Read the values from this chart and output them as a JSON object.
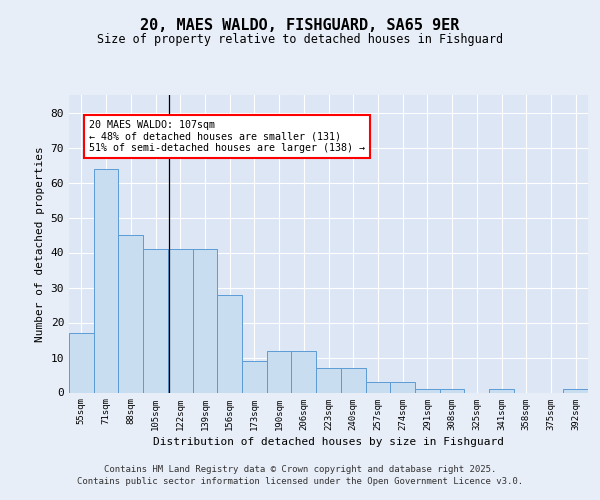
{
  "title": "20, MAES WALDO, FISHGUARD, SA65 9ER",
  "subtitle": "Size of property relative to detached houses in Fishguard",
  "xlabel": "Distribution of detached houses by size in Fishguard",
  "ylabel": "Number of detached properties",
  "categories": [
    "55sqm",
    "71sqm",
    "88sqm",
    "105sqm",
    "122sqm",
    "139sqm",
    "156sqm",
    "173sqm",
    "190sqm",
    "206sqm",
    "223sqm",
    "240sqm",
    "257sqm",
    "274sqm",
    "291sqm",
    "308sqm",
    "325sqm",
    "341sqm",
    "358sqm",
    "375sqm",
    "392sqm"
  ],
  "values": [
    17,
    64,
    45,
    41,
    41,
    41,
    28,
    9,
    12,
    12,
    7,
    7,
    3,
    3,
    1,
    1,
    0,
    1,
    0,
    0,
    1
  ],
  "bar_color": "#c9ddf0",
  "bar_edge_color": "#5b9bd5",
  "ylim": [
    0,
    85
  ],
  "yticks": [
    0,
    10,
    20,
    30,
    40,
    50,
    60,
    70,
    80
  ],
  "annotation_text": "20 MAES WALDO: 107sqm\n← 48% of detached houses are smaller (131)\n51% of semi-detached houses are larger (138) →",
  "vline_x": 3.55,
  "background_color": "#e8eef8",
  "plot_bg_color": "#dde6f5",
  "footer_line1": "Contains HM Land Registry data © Crown copyright and database right 2025.",
  "footer_line2": "Contains public sector information licensed under the Open Government Licence v3.0."
}
